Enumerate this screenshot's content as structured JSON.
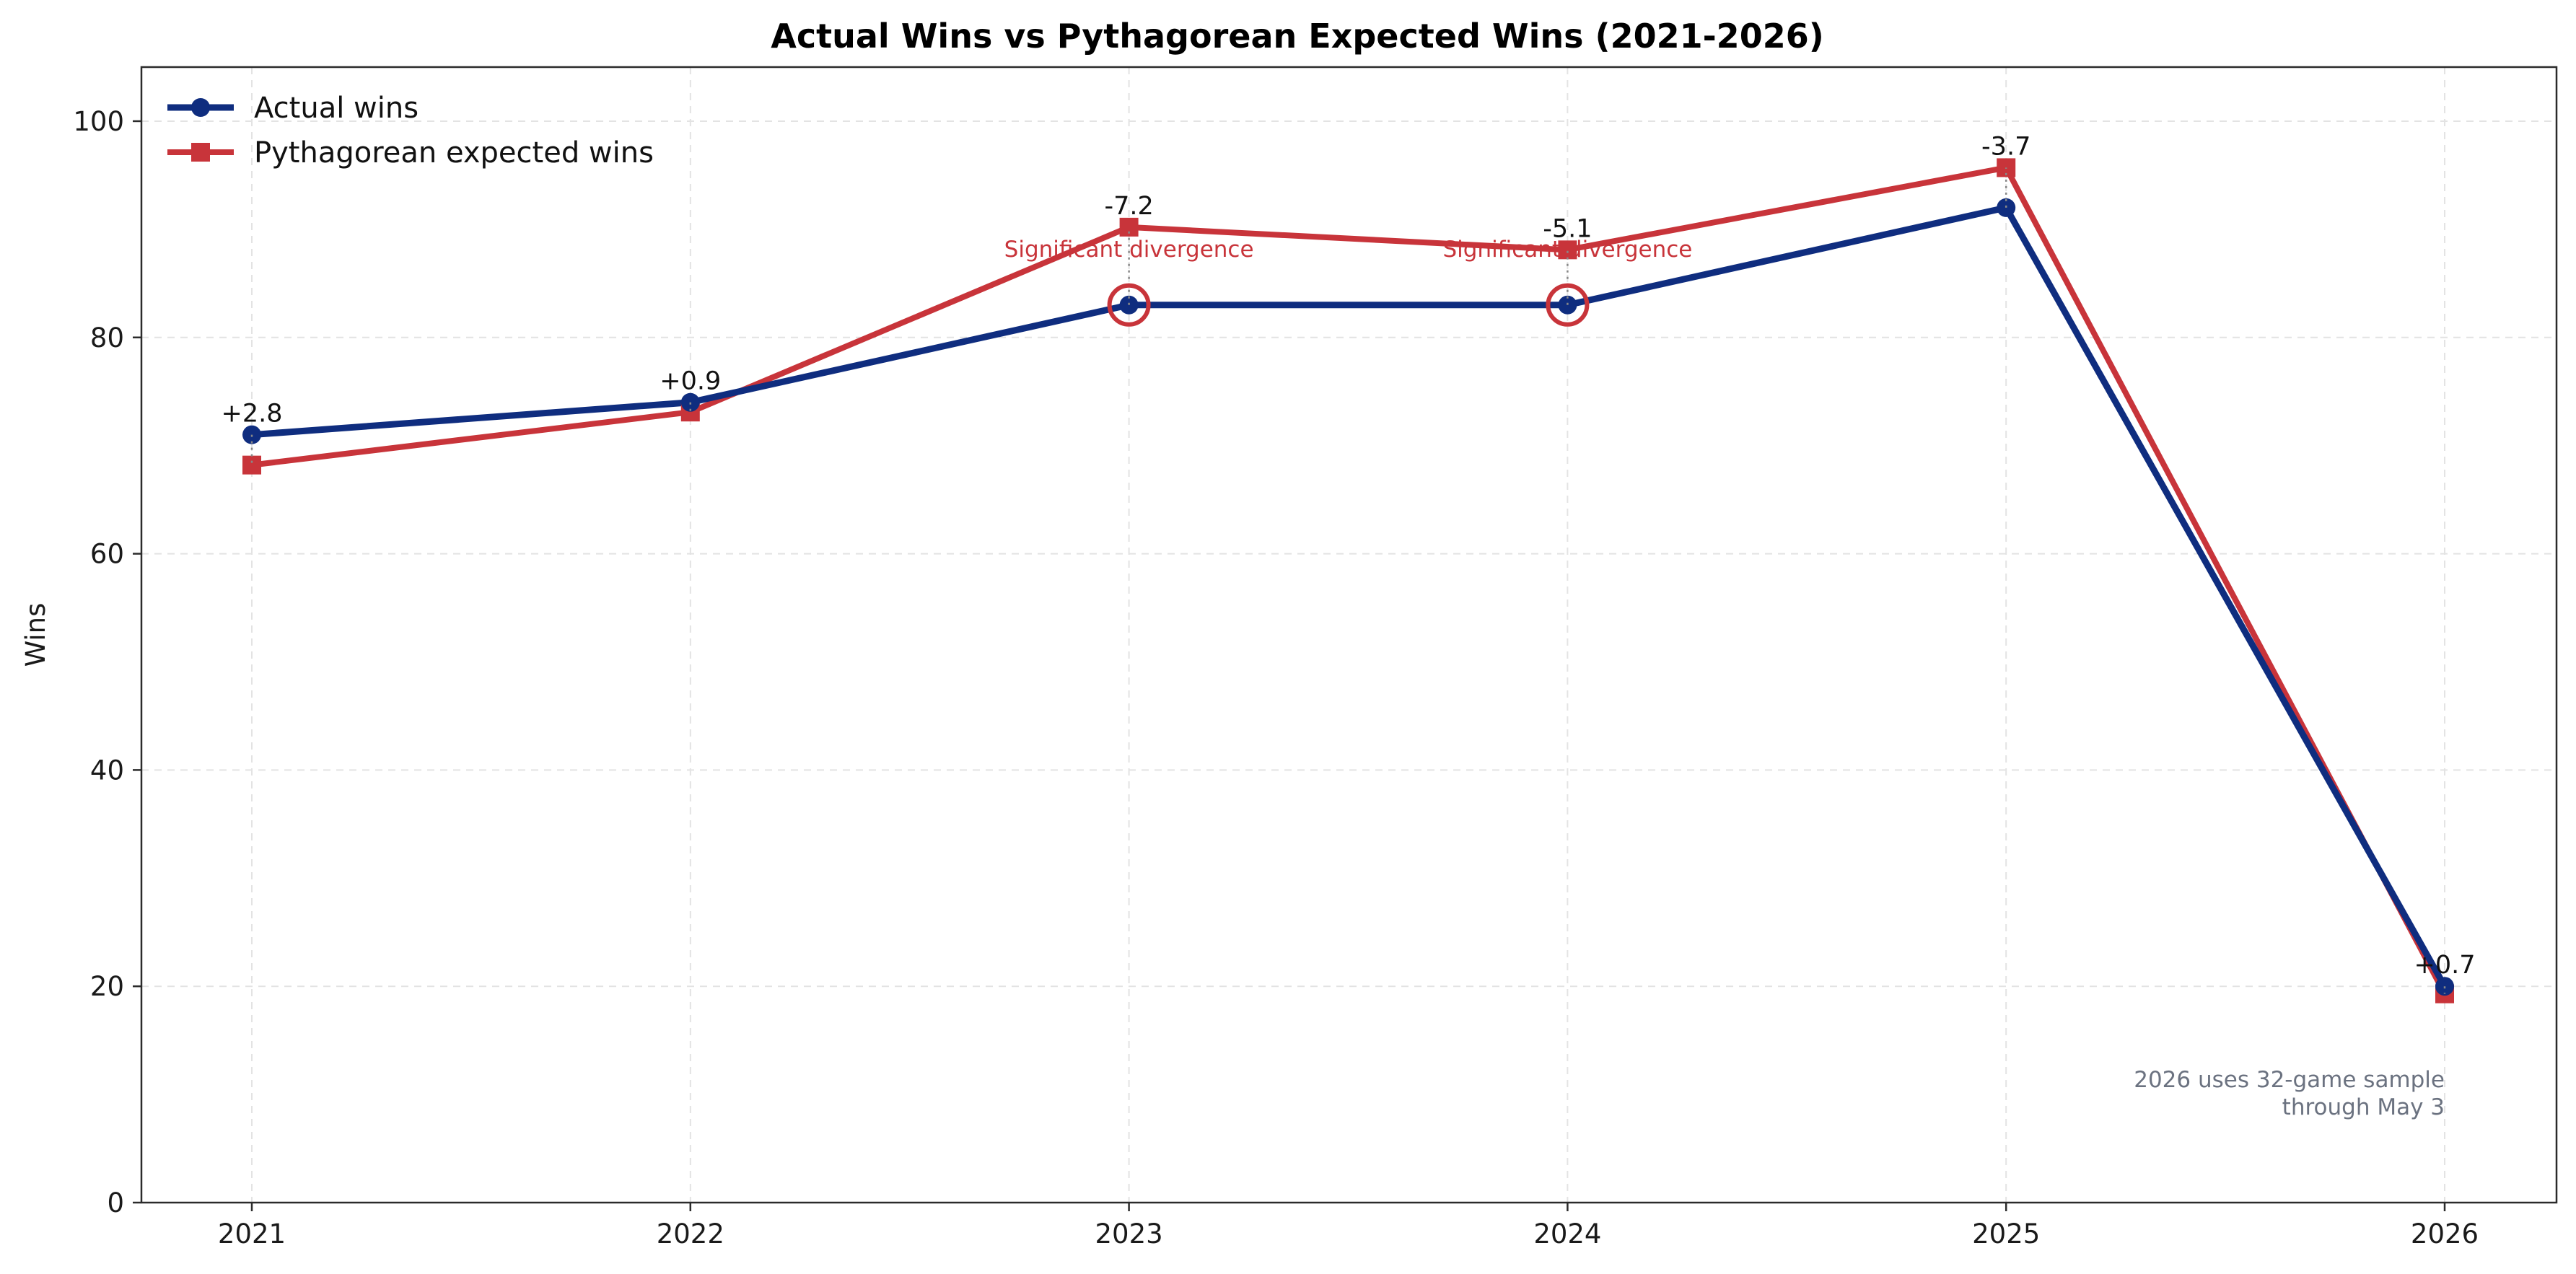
{
  "chart_data": {
    "type": "line",
    "title": "Actual Wins vs Pythagorean Expected Wins (2021-2026)",
    "xlabel": "",
    "ylabel": "Wins",
    "x": [
      "2021",
      "2022",
      "2023",
      "2024",
      "2025",
      "2026"
    ],
    "ylim": [
      0,
      105
    ],
    "yticks": [
      0,
      20,
      40,
      60,
      80,
      100
    ],
    "grid": true,
    "legend_position": "top-left",
    "series": [
      {
        "name": "Actual wins",
        "values": [
          71,
          74,
          83,
          83,
          92,
          20
        ],
        "color": "#0f2d7f",
        "marker": "circle"
      },
      {
        "name": "Pythagorean expected wins",
        "values": [
          68.2,
          73.1,
          90.2,
          88.1,
          95.7,
          19.3
        ],
        "color": "#c8343a",
        "marker": "square"
      }
    ],
    "difference_labels": [
      "+2.8",
      "+0.9",
      "-7.2",
      "-5.1",
      "-3.7",
      "+0.7"
    ],
    "divergence_highlight": {
      "years": [
        "2023",
        "2024"
      ],
      "label": "Significant divergence",
      "color": "#c8343a"
    },
    "footnote": [
      "2026 uses 32-game sample",
      "through May 3"
    ]
  }
}
